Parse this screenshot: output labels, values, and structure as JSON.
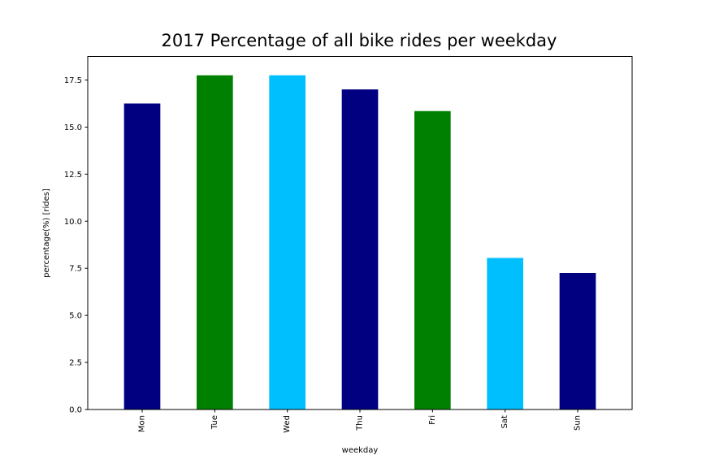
{
  "chart_data": {
    "type": "bar",
    "title": "2017 Percentage of all bike rides per weekday",
    "xlabel": "weekday",
    "ylabel": "percentage(%) [rides]",
    "categories": [
      "Mon",
      "Tue",
      "Wed",
      "Thu",
      "Fri",
      "Sat",
      "Sun"
    ],
    "values": [
      16.25,
      17.75,
      17.75,
      17.0,
      15.85,
      8.05,
      7.25
    ],
    "colors": [
      "#000080",
      "#008000",
      "#00BFFF",
      "#000080",
      "#008000",
      "#00BFFF",
      "#000080"
    ],
    "ylim": [
      0,
      18.75
    ],
    "yticks": [
      0.0,
      2.5,
      5.0,
      7.5,
      10.0,
      12.5,
      15.0,
      17.5
    ],
    "ytick_labels": [
      "0.0",
      "2.5",
      "5.0",
      "7.5",
      "10.0",
      "12.5",
      "15.0",
      "17.5"
    ],
    "grid": false,
    "legend": "none"
  }
}
